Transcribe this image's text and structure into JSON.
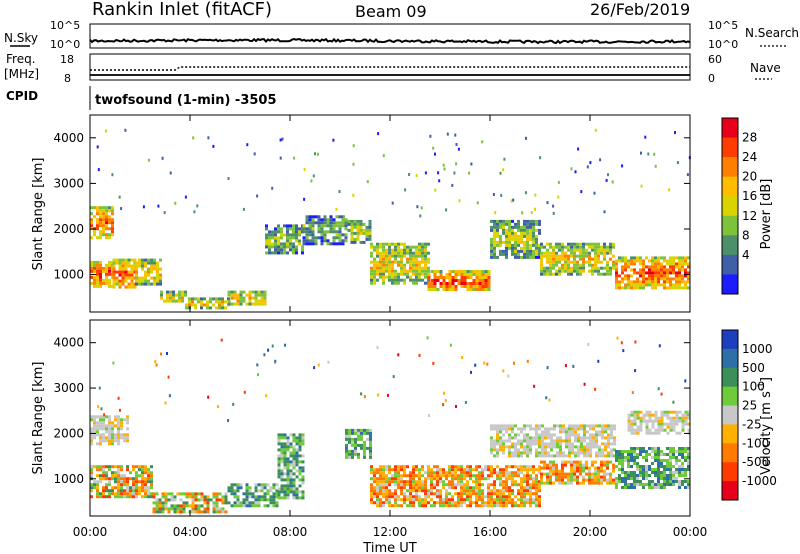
{
  "header": {
    "station": "Rankin Inlet (fitACF)",
    "beam": "Beam 09",
    "date": "26/Feb/2019"
  },
  "strip": {
    "nsky_label": "N.Sky",
    "nsky_ticks": [
      "10^5",
      "10^0"
    ],
    "nsearch_label": "N.Search",
    "nsearch_ticks": [
      "10^5",
      "10^0"
    ],
    "freq_label_line1": "Freq.",
    "freq_label_line2": "[MHz]",
    "freq_ticks": [
      "18",
      "8"
    ],
    "nave_label": "Nave",
    "nave_ticks": [
      "60",
      "0"
    ],
    "cpid_label": "CPID",
    "cpid_text": "twofsound (1-min) -3505"
  },
  "chart_data": [
    {
      "type": "heatmap",
      "name": "power-panel",
      "ylabel": "Slant Range [km]",
      "ylim": [
        180,
        4500
      ],
      "yticks": [
        1000,
        2000,
        3000,
        4000
      ],
      "xlim_hours": [
        0,
        24
      ],
      "colorbar_label": "Power [dB]",
      "colorbar_ticks": [
        "28",
        "24",
        "20",
        "16",
        "12",
        "8",
        "4"
      ],
      "colorbar_colors": [
        "#e8001a",
        "#ff3d00",
        "#ff8000",
        "#ffbc00",
        "#d9d400",
        "#7cc23b",
        "#4d8f6a",
        "#3f5fa8",
        "#1c1cff"
      ],
      "regions": [
        {
          "t": [
            0.0,
            0.9
          ],
          "r": [
            750,
            1300
          ],
          "level": 0.85
        },
        {
          "t": [
            0.0,
            0.9
          ],
          "r": [
            1800,
            2500
          ],
          "level": 0.8
        },
        {
          "t": [
            0.9,
            1.8
          ],
          "r": [
            700,
            1350
          ],
          "level": 0.8
        },
        {
          "t": [
            1.8,
            2.8
          ],
          "r": [
            800,
            1350
          ],
          "level": 0.65
        },
        {
          "t": [
            2.8,
            3.8
          ],
          "r": [
            400,
            650
          ],
          "level": 0.6
        },
        {
          "t": [
            3.8,
            5.5
          ],
          "r": [
            300,
            500
          ],
          "level": 0.65
        },
        {
          "t": [
            5.5,
            7.0
          ],
          "r": [
            350,
            650
          ],
          "level": 0.6
        },
        {
          "t": [
            7.0,
            8.5
          ],
          "r": [
            1500,
            2100
          ],
          "level": 0.4
        },
        {
          "t": [
            8.5,
            10.2
          ],
          "r": [
            1700,
            2300
          ],
          "level": 0.35
        },
        {
          "t": [
            10.3,
            11.2
          ],
          "r": [
            1700,
            2200
          ],
          "level": 0.45
        },
        {
          "t": [
            11.2,
            13.5
          ],
          "r": [
            800,
            1700
          ],
          "level": 0.6
        },
        {
          "t": [
            13.5,
            16.0
          ],
          "r": [
            650,
            1100
          ],
          "level": 0.85
        },
        {
          "t": [
            16.0,
            18.0
          ],
          "r": [
            1400,
            2200
          ],
          "level": 0.45
        },
        {
          "t": [
            18.0,
            21.0
          ],
          "r": [
            1000,
            1700
          ],
          "level": 0.6
        },
        {
          "t": [
            21.0,
            24.0
          ],
          "r": [
            700,
            1400
          ],
          "level": 0.85
        }
      ]
    },
    {
      "type": "heatmap",
      "name": "velocity-panel",
      "ylabel": "Slant Range [km]",
      "ylim": [
        180,
        4500
      ],
      "yticks": [
        1000,
        2000,
        3000,
        4000
      ],
      "xlabel": "Time UT",
      "xlim_hours": [
        0,
        24
      ],
      "xticks": [
        "00:00",
        "04:00",
        "08:00",
        "12:00",
        "16:00",
        "20:00",
        "00:00"
      ],
      "colorbar_label": "Velocity [m s",
      "colorbar_label_sup": "-1",
      "colorbar_label_end": "]",
      "colorbar_ticks": [
        "1000",
        "500",
        "100",
        "25",
        "-25",
        "-100",
        "-500",
        "-1000"
      ],
      "colorbar_colors": [
        "#1c3fbf",
        "#2e6fa8",
        "#3c8f5a",
        "#6fcb3a",
        "#c8c8c8",
        "#ffb000",
        "#ff7a00",
        "#ff3b00",
        "#e8001a"
      ],
      "regions": [
        {
          "t": [
            0.0,
            1.5
          ],
          "r": [
            1800,
            2400
          ],
          "v": "gray"
        },
        {
          "t": [
            0.0,
            2.5
          ],
          "r": [
            600,
            1300
          ],
          "v": "mix"
        },
        {
          "t": [
            2.5,
            5.5
          ],
          "r": [
            300,
            700
          ],
          "v": "mix"
        },
        {
          "t": [
            5.5,
            7.5
          ],
          "r": [
            400,
            900
          ],
          "v": "green"
        },
        {
          "t": [
            7.5,
            8.5
          ],
          "r": [
            600,
            2000
          ],
          "v": "green"
        },
        {
          "t": [
            10.2,
            11.2
          ],
          "r": [
            1500,
            2100
          ],
          "v": "green"
        },
        {
          "t": [
            11.2,
            18.0
          ],
          "r": [
            400,
            1300
          ],
          "v": "orange"
        },
        {
          "t": [
            16.0,
            21.0
          ],
          "r": [
            1500,
            2200
          ],
          "v": "gray"
        },
        {
          "t": [
            18.0,
            21.0
          ],
          "r": [
            900,
            1400
          ],
          "v": "orange"
        },
        {
          "t": [
            21.0,
            24.0
          ],
          "r": [
            800,
            1700
          ],
          "v": "green"
        },
        {
          "t": [
            21.5,
            24.0
          ],
          "r": [
            2000,
            2500
          ],
          "v": "gray"
        }
      ]
    }
  ]
}
